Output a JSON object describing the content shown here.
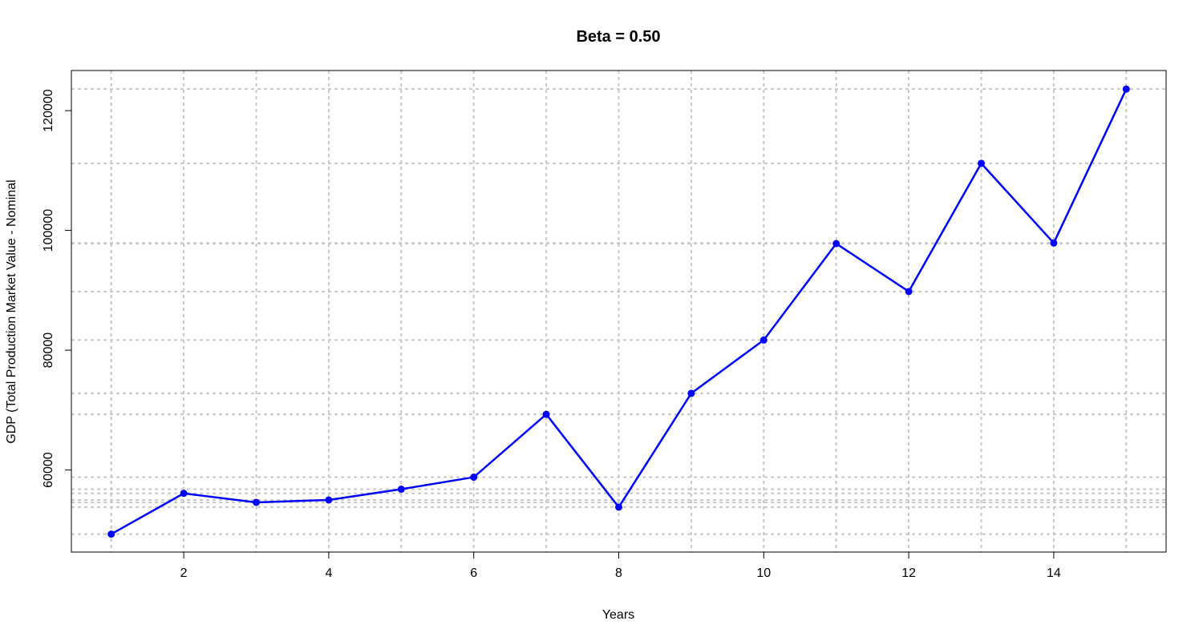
{
  "chart_data": {
    "type": "line",
    "title": "Beta = 0.50",
    "xlabel": "Years",
    "ylabel": "GDP (Total Production Market Value - Nominal",
    "xlim": [
      0.45,
      15.55
    ],
    "ylim": [
      46300,
      126700
    ],
    "x_ticks": [
      2,
      4,
      6,
      8,
      10,
      12,
      14
    ],
    "y_ticks": [
      60000,
      80000,
      100000,
      120000
    ],
    "grid": true,
    "grid_style": "dotted",
    "series": [
      {
        "color": "#0000ff",
        "x": [
          1,
          2,
          3,
          4,
          5,
          6,
          7,
          8,
          9,
          10,
          11,
          12,
          13,
          14,
          15
        ],
        "y": [
          49300,
          56100,
          54600,
          55000,
          56800,
          58800,
          69300,
          53800,
          72800,
          81700,
          97800,
          89800,
          111200,
          97900,
          123600
        ]
      }
    ],
    "vertical_grid_x": [
      1,
      2,
      3,
      4,
      5,
      6,
      7,
      8,
      9,
      10,
      11,
      12,
      13,
      14,
      15
    ],
    "horizontal_grid_y": [
      49300,
      53800,
      54600,
      55000,
      56100,
      56800,
      58800,
      69300,
      72800,
      81700,
      89800,
      97800,
      97900,
      111200,
      123600
    ],
    "colors": {
      "line": "#0000ff",
      "grid": "#c8c8c8",
      "axis": "#000000"
    }
  }
}
